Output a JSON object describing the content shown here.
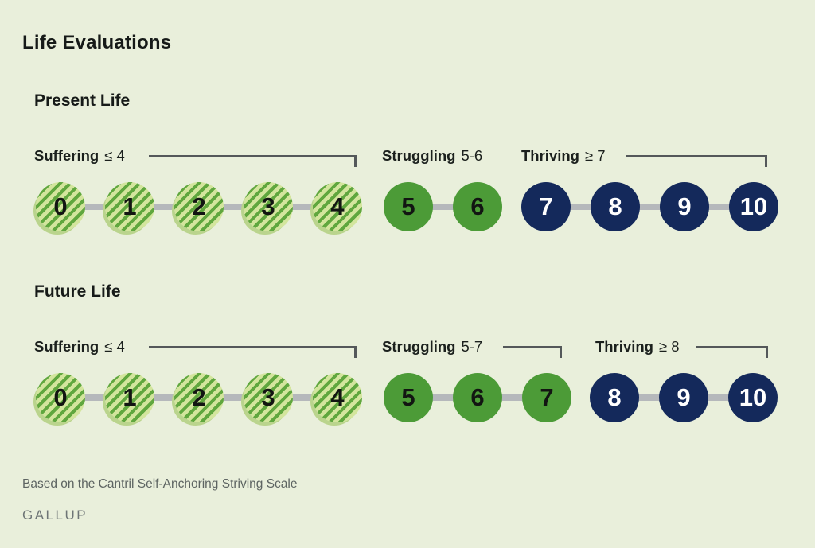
{
  "title": "Life Evaluations",
  "colors": {
    "background": "#e9efdb",
    "suffering_stripe_dark": "#60a73e",
    "suffering_stripe_light": "#d3e59d",
    "struggling_green": "#4c9b37",
    "thriving_navy": "#14295b",
    "connector_gray": "#b5b8bb",
    "bracket_gray": "#54585a"
  },
  "rows": [
    {
      "heading": "Present Life",
      "groups": [
        {
          "name": "suffering",
          "label_bold": "Suffering",
          "label_rest": "≤ 4",
          "values": [
            0,
            1,
            2,
            3,
            4
          ]
        },
        {
          "name": "struggling",
          "label_bold": "Struggling",
          "label_rest": "5-6",
          "values": [
            5,
            6
          ]
        },
        {
          "name": "thriving",
          "label_bold": "Thriving",
          "label_rest": "≥ 7",
          "values": [
            7,
            8,
            9,
            10
          ]
        }
      ]
    },
    {
      "heading": "Future Life",
      "groups": [
        {
          "name": "suffering",
          "label_bold": "Suffering",
          "label_rest": "≤ 4",
          "values": [
            0,
            1,
            2,
            3,
            4
          ]
        },
        {
          "name": "struggling",
          "label_bold": "Struggling",
          "label_rest": "5-7",
          "values": [
            5,
            6,
            7
          ]
        },
        {
          "name": "thriving",
          "label_bold": "Thriving",
          "label_rest": "≥ 8",
          "values": [
            8,
            9,
            10
          ]
        }
      ]
    }
  ],
  "footer": {
    "note": "Based on the Cantril Self-Anchoring Striving Scale",
    "brand": "GALLUP"
  }
}
